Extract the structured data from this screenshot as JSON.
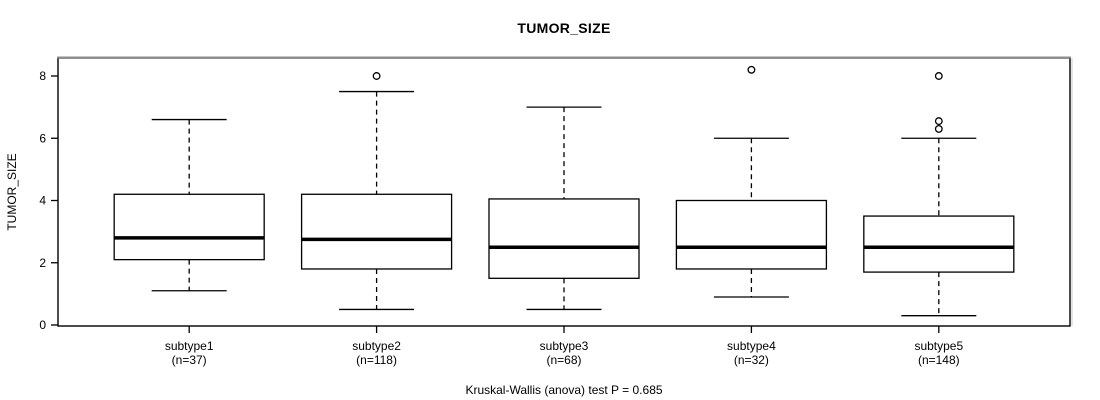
{
  "chart_data": {
    "type": "boxplot",
    "title": "TUMOR_SIZE",
    "ylabel": "TUMOR_SIZE",
    "caption": "Kruskal-Wallis (anova) test P = 0.685",
    "y_ticks": [
      0,
      2,
      4,
      6,
      8
    ],
    "ylim": [
      0,
      8.6
    ],
    "grid": false,
    "legend": "none",
    "groups": [
      {
        "label": "subtype1",
        "n": 37,
        "n_label": "(n=37)",
        "whisker_low": 1.1,
        "q1": 2.1,
        "median": 2.8,
        "q3": 4.2,
        "whisker_high": 6.6,
        "outliers": []
      },
      {
        "label": "subtype2",
        "n": 118,
        "n_label": "(n=118)",
        "whisker_low": 0.5,
        "q1": 1.8,
        "median": 2.75,
        "q3": 4.2,
        "whisker_high": 7.5,
        "outliers": [
          8.0
        ]
      },
      {
        "label": "subtype3",
        "n": 68,
        "n_label": "(n=68)",
        "whisker_low": 0.5,
        "q1": 1.5,
        "median": 2.5,
        "q3": 4.05,
        "whisker_high": 7.0,
        "outliers": []
      },
      {
        "label": "subtype4",
        "n": 32,
        "n_label": "(n=32)",
        "whisker_low": 0.9,
        "q1": 1.8,
        "median": 2.5,
        "q3": 4.0,
        "whisker_high": 6.0,
        "outliers": [
          8.2
        ]
      },
      {
        "label": "subtype5",
        "n": 148,
        "n_label": "(n=148)",
        "whisker_low": 0.3,
        "q1": 1.7,
        "median": 2.5,
        "q3": 3.5,
        "whisker_high": 6.0,
        "outliers": [
          6.3,
          6.55,
          8.0
        ]
      }
    ],
    "colors": {
      "background": "#ffffff",
      "stroke": "#000000",
      "median": "#000000",
      "frame_top": "#8c8c8c",
      "frame_side_shadow": "#c8c8c8",
      "text": "#000000"
    }
  }
}
